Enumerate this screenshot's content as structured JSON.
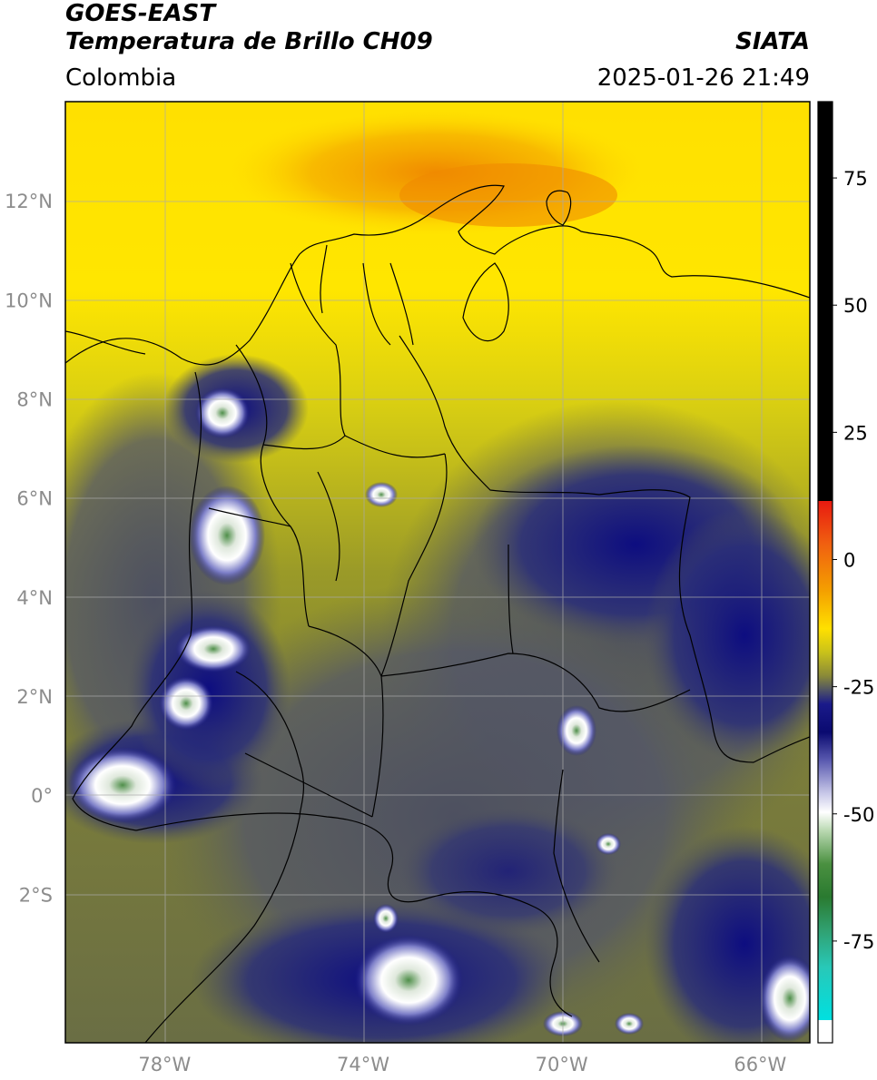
{
  "header": {
    "title_line1": "GOES-EAST",
    "title_line2": "Temperatura de Brillo CH09",
    "agency": "SIATA",
    "region": "Colombia",
    "datetime": "2025-01-26 21:49"
  },
  "map": {
    "lon_ticks": [
      "78°W",
      "74°W",
      "70°W",
      "66°W"
    ],
    "lat_ticks": [
      "12°N",
      "10°N",
      "8°N",
      "6°N",
      "4°N",
      "2°N",
      "0°",
      "2°S"
    ],
    "extent": {
      "lon_min": -80,
      "lon_max": -65,
      "lat_min": -5,
      "lat_max": 14
    }
  },
  "colorbar": {
    "labels": [
      "75",
      "50",
      "25",
      "0",
      "-25",
      "-50",
      "-75"
    ],
    "range": [
      -95,
      90
    ],
    "colors": {
      "black": "#000000",
      "red": "#e82010",
      "orange": "#f0a000",
      "yellow": "#ffee00",
      "olive": "#a9a81e",
      "gray": "#4a4d5c",
      "navy": "#12127a",
      "white": "#ffffff",
      "green": "#2d7d2d",
      "cyan": "#10d0d0"
    }
  }
}
